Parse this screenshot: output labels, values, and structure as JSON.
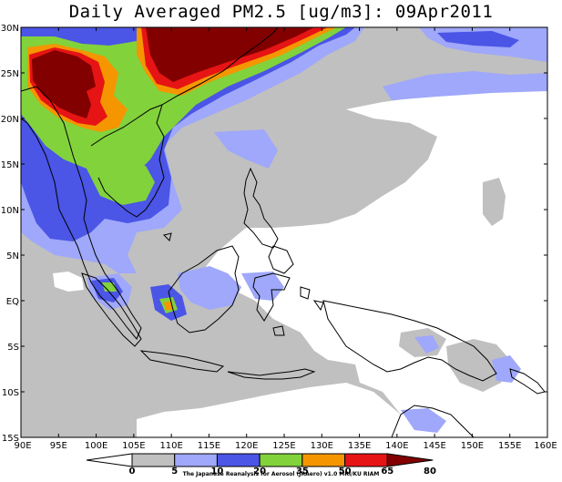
{
  "title": "Daily Averaged PM2.5 [ug/m3]: 09Apr2011",
  "lat_labels": [
    "30N",
    "25N",
    "20N",
    "15N",
    "10N",
    "5N",
    "EQ",
    "5S",
    "10S",
    "15S"
  ],
  "lon_labels": [
    "90E",
    "95E",
    "100E",
    "105E",
    "110E",
    "115E",
    "120E",
    "125E",
    "130E",
    "135E",
    "140E",
    "145E",
    "150E",
    "155E",
    "160E"
  ],
  "colorbar": {
    "values": [
      "0",
      "5",
      "10",
      "20",
      "35",
      "50",
      "65",
      "80"
    ],
    "colors": [
      "#ffffff",
      "#c0c0c0",
      "#9fa8fa",
      "#4b55e6",
      "#82d23c",
      "#f59600",
      "#e61414",
      "#820000"
    ]
  },
  "credit": "The Japanese Reanalysis for Aerosol (JRAero) v1.0 MRI/KU RIAM",
  "colors": {
    "frame": "#000000",
    "land_outline": "#000000"
  }
}
